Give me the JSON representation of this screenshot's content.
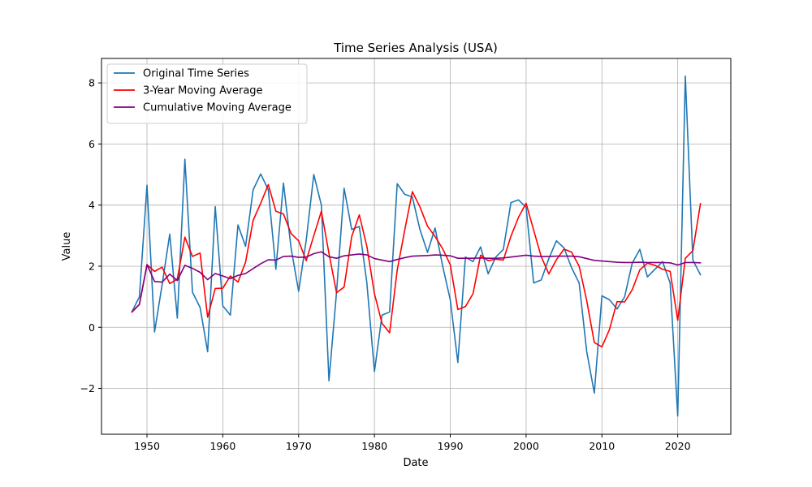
{
  "chart_data": {
    "type": "line",
    "title": "Time Series Analysis (USA)",
    "xlabel": "Date",
    "ylabel": "Value",
    "xlim": [
      1944,
      2027
    ],
    "ylim": [
      -3.5,
      8.8
    ],
    "xticks": [
      1950,
      1960,
      1970,
      1980,
      1990,
      2000,
      2010,
      2020
    ],
    "yticks": [
      -2,
      0,
      2,
      4,
      6,
      8
    ],
    "ytick_labels": [
      "−2",
      "0",
      "2",
      "4",
      "6",
      "8"
    ],
    "grid": true,
    "legend_position": "top-left",
    "x": [
      1948,
      1949,
      1950,
      1951,
      1952,
      1953,
      1954,
      1955,
      1956,
      1957,
      1958,
      1959,
      1960,
      1961,
      1962,
      1963,
      1964,
      1965,
      1966,
      1967,
      1968,
      1969,
      1970,
      1971,
      1972,
      1973,
      1974,
      1975,
      1976,
      1977,
      1978,
      1979,
      1980,
      1981,
      1982,
      1983,
      1984,
      1985,
      1986,
      1987,
      1988,
      1989,
      1990,
      1991,
      1992,
      1993,
      1994,
      1995,
      1996,
      1997,
      1998,
      1999,
      2000,
      2001,
      2002,
      2003,
      2004,
      2005,
      2006,
      2007,
      2008,
      2009,
      2010,
      2011,
      2012,
      2013,
      2014,
      2015,
      2016,
      2017,
      2018,
      2019,
      2020,
      2021,
      2022,
      2023
    ],
    "series": [
      {
        "name": "Original Time Series",
        "color": "#1f77b4",
        "values": [
          0.5,
          1.0,
          4.65,
          -0.15,
          1.4,
          3.05,
          0.3,
          5.5,
          1.15,
          0.65,
          -0.8,
          3.95,
          0.7,
          0.4,
          3.35,
          2.65,
          4.5,
          5.02,
          4.5,
          1.9,
          4.72,
          2.6,
          1.18,
          2.85,
          5.0,
          4.0,
          -1.75,
          1.15,
          4.55,
          3.2,
          3.3,
          1.45,
          -1.45,
          0.4,
          0.5,
          4.7,
          4.35,
          4.27,
          3.2,
          2.45,
          3.25,
          2.0,
          0.9,
          -1.15,
          2.3,
          2.15,
          2.63,
          1.75,
          2.3,
          2.55,
          4.08,
          4.17,
          3.93,
          1.45,
          1.55,
          2.25,
          2.83,
          2.6,
          1.95,
          1.45,
          -0.8,
          -2.15,
          1.03,
          0.9,
          0.6,
          1.0,
          2.1,
          2.55,
          1.65,
          1.9,
          2.15,
          1.45,
          -2.9,
          8.22,
          2.2,
          1.72
        ]
      },
      {
        "name": "3-Year Moving Average",
        "color": "#ff0000",
        "values": [
          0.5,
          0.75,
          2.05,
          1.83,
          1.97,
          1.43,
          1.58,
          2.95,
          2.32,
          2.43,
          0.33,
          1.27,
          1.28,
          1.68,
          1.48,
          2.13,
          3.5,
          4.06,
          4.67,
          3.8,
          3.71,
          3.07,
          2.83,
          2.18,
          3.0,
          3.8,
          2.42,
          1.13,
          1.32,
          2.97,
          3.68,
          2.65,
          1.1,
          0.13,
          -0.18,
          1.87,
          3.19,
          4.44,
          3.94,
          3.31,
          2.97,
          2.57,
          2.05,
          0.58,
          0.68,
          1.1,
          2.36,
          2.18,
          2.23,
          2.2,
          2.98,
          3.6,
          4.06,
          3.18,
          2.31,
          1.75,
          2.21,
          2.56,
          2.46,
          2.0,
          0.87,
          -0.5,
          -0.64,
          -0.07,
          0.84,
          0.83,
          1.23,
          1.88,
          2.1,
          2.03,
          1.9,
          1.83,
          0.23,
          2.26,
          2.51,
          4.05
        ]
      },
      {
        "name": "Cumulative Moving Average",
        "color": "#800080",
        "values": [
          0.5,
          0.75,
          2.05,
          1.5,
          1.48,
          1.74,
          1.53,
          2.03,
          1.93,
          1.8,
          1.56,
          1.76,
          1.68,
          1.59,
          1.7,
          1.76,
          1.92,
          2.08,
          2.21,
          2.2,
          2.32,
          2.33,
          2.29,
          2.3,
          2.41,
          2.47,
          2.31,
          2.26,
          2.34,
          2.37,
          2.4,
          2.37,
          2.25,
          2.2,
          2.15,
          2.22,
          2.28,
          2.33,
          2.34,
          2.35,
          2.37,
          2.36,
          2.34,
          2.26,
          2.26,
          2.26,
          2.27,
          2.26,
          2.26,
          2.27,
          2.3,
          2.33,
          2.36,
          2.33,
          2.32,
          2.32,
          2.33,
          2.33,
          2.33,
          2.31,
          2.25,
          2.19,
          2.17,
          2.15,
          2.13,
          2.12,
          2.12,
          2.13,
          2.12,
          2.12,
          2.12,
          2.11,
          2.04,
          2.12,
          2.12,
          2.11
        ]
      }
    ]
  }
}
